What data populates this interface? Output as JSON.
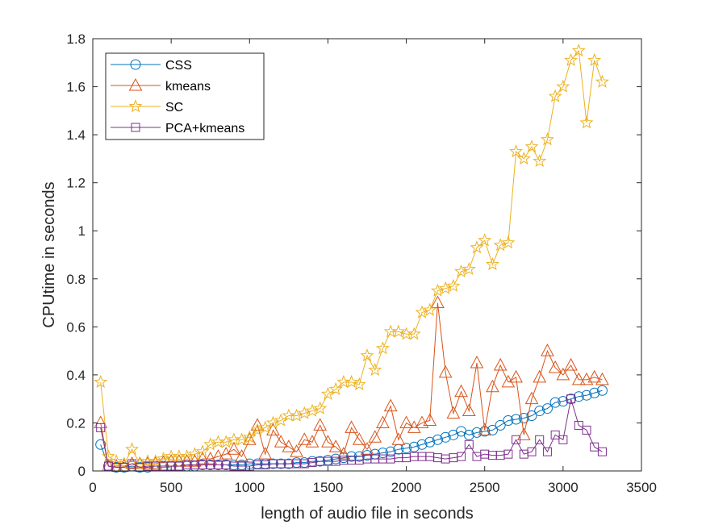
{
  "chart_data": {
    "type": "line",
    "xlabel": "length of audio file in seconds",
    "ylabel": "CPUtime in seconds",
    "xlim": [
      0,
      3500
    ],
    "ylim": [
      0,
      1.8
    ],
    "xticks": [
      0,
      500,
      1000,
      1500,
      2000,
      2500,
      3000,
      3500
    ],
    "yticks": [
      0,
      0.2,
      0.4,
      0.6,
      0.8,
      1.0,
      1.2,
      1.4,
      1.6,
      1.8
    ],
    "xtick_labels": [
      "0",
      "500",
      "1000",
      "1500",
      "2000",
      "2500",
      "3000",
      "3500"
    ],
    "ytick_labels": [
      "0",
      "0.2",
      "0.4",
      "0.6",
      "0.8",
      "1",
      "1.2",
      "1.4",
      "1.6",
      "1.8"
    ],
    "grid": false,
    "legend_position": "top-left",
    "x": [
      50,
      100,
      150,
      200,
      250,
      300,
      350,
      400,
      450,
      500,
      550,
      600,
      650,
      700,
      750,
      800,
      850,
      900,
      950,
      1000,
      1050,
      1100,
      1150,
      1200,
      1250,
      1300,
      1350,
      1400,
      1450,
      1500,
      1550,
      1600,
      1650,
      1700,
      1750,
      1800,
      1850,
      1900,
      1950,
      2000,
      2050,
      2100,
      2150,
      2200,
      2250,
      2300,
      2350,
      2400,
      2450,
      2500,
      2550,
      2600,
      2650,
      2700,
      2750,
      2800,
      2850,
      2900,
      2950,
      3000,
      3050,
      3100,
      3150,
      3200,
      3250
    ],
    "series": [
      {
        "name": "CSS",
        "color": "#0072BD",
        "marker": "circle",
        "values": [
          0.11,
          0.02,
          0.015,
          0.015,
          0.02,
          0.015,
          0.015,
          0.02,
          0.02,
          0.02,
          0.02,
          0.02,
          0.02,
          0.025,
          0.025,
          0.025,
          0.025,
          0.025,
          0.025,
          0.03,
          0.03,
          0.03,
          0.03,
          0.03,
          0.03,
          0.035,
          0.035,
          0.04,
          0.04,
          0.045,
          0.05,
          0.055,
          0.06,
          0.06,
          0.065,
          0.07,
          0.075,
          0.08,
          0.09,
          0.095,
          0.1,
          0.11,
          0.12,
          0.13,
          0.14,
          0.15,
          0.165,
          0.15,
          0.16,
          0.165,
          0.17,
          0.19,
          0.21,
          0.215,
          0.22,
          0.23,
          0.25,
          0.26,
          0.285,
          0.29,
          0.3,
          0.31,
          0.315,
          0.325,
          0.335
        ]
      },
      {
        "name": "kmeans",
        "color": "#D95319",
        "marker": "triangle",
        "values": [
          0.2,
          0.02,
          0.02,
          0.02,
          0.03,
          0.03,
          0.03,
          0.03,
          0.035,
          0.04,
          0.04,
          0.04,
          0.04,
          0.05,
          0.05,
          0.06,
          0.07,
          0.09,
          0.06,
          0.13,
          0.19,
          0.07,
          0.17,
          0.12,
          0.1,
          0.08,
          0.13,
          0.12,
          0.19,
          0.12,
          0.1,
          0.07,
          0.18,
          0.13,
          0.09,
          0.14,
          0.2,
          0.27,
          0.13,
          0.2,
          0.18,
          0.2,
          0.21,
          0.7,
          0.41,
          0.24,
          0.33,
          0.25,
          0.45,
          0.17,
          0.35,
          0.44,
          0.37,
          0.39,
          0.15,
          0.3,
          0.39,
          0.5,
          0.43,
          0.4,
          0.44,
          0.38,
          0.38,
          0.39,
          0.38
        ]
      },
      {
        "name": "SC",
        "color": "#EDB120",
        "marker": "star",
        "values": [
          0.37,
          0.06,
          0.04,
          0.03,
          0.09,
          0.03,
          0.04,
          0.04,
          0.05,
          0.06,
          0.06,
          0.06,
          0.07,
          0.08,
          0.11,
          0.12,
          0.12,
          0.13,
          0.13,
          0.14,
          0.17,
          0.18,
          0.2,
          0.21,
          0.23,
          0.23,
          0.24,
          0.25,
          0.26,
          0.32,
          0.34,
          0.37,
          0.37,
          0.36,
          0.48,
          0.42,
          0.51,
          0.58,
          0.58,
          0.57,
          0.57,
          0.66,
          0.67,
          0.75,
          0.76,
          0.77,
          0.83,
          0.84,
          0.93,
          0.96,
          0.86,
          0.94,
          0.95,
          1.33,
          1.3,
          1.35,
          1.29,
          1.38,
          1.56,
          1.6,
          1.71,
          1.75,
          1.45,
          1.71,
          1.62
        ]
      },
      {
        "name": "PCA+kmeans",
        "color": "#7E2F8E",
        "marker": "square",
        "values": [
          0.18,
          0.02,
          0.015,
          0.015,
          0.03,
          0.015,
          0.02,
          0.02,
          0.02,
          0.02,
          0.02,
          0.025,
          0.025,
          0.025,
          0.025,
          0.025,
          0.025,
          0.02,
          0.02,
          0.02,
          0.025,
          0.025,
          0.03,
          0.03,
          0.03,
          0.03,
          0.03,
          0.035,
          0.04,
          0.04,
          0.04,
          0.045,
          0.045,
          0.045,
          0.05,
          0.05,
          0.05,
          0.05,
          0.055,
          0.055,
          0.06,
          0.06,
          0.06,
          0.055,
          0.05,
          0.055,
          0.06,
          0.11,
          0.06,
          0.07,
          0.065,
          0.065,
          0.07,
          0.13,
          0.07,
          0.08,
          0.13,
          0.08,
          0.15,
          0.13,
          0.3,
          0.19,
          0.17,
          0.1,
          0.08
        ]
      }
    ]
  }
}
